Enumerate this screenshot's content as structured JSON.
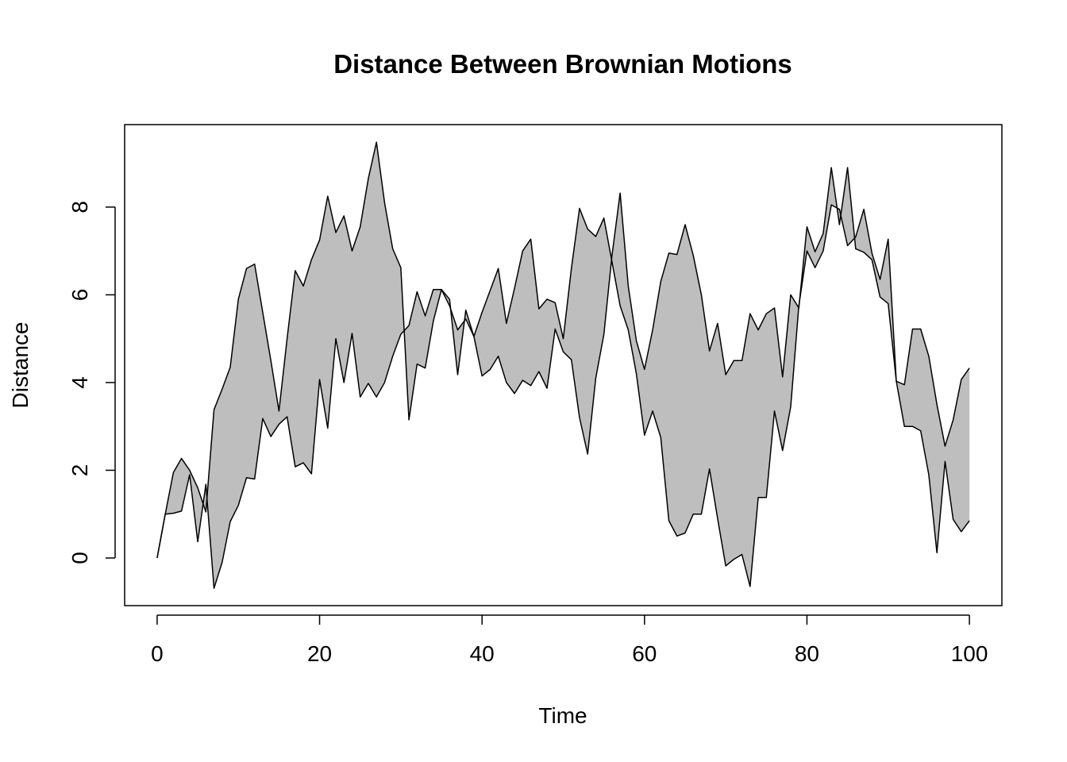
{
  "chart_data": {
    "type": "area_between",
    "title": "Distance Between Brownian Motions",
    "xlabel": "Time",
    "ylabel": "Distance",
    "x": [
      0,
      1,
      2,
      3,
      4,
      5,
      6,
      7,
      8,
      9,
      10,
      11,
      12,
      13,
      14,
      15,
      16,
      17,
      18,
      19,
      20,
      21,
      22,
      23,
      24,
      25,
      26,
      27,
      28,
      29,
      30,
      31,
      32,
      33,
      34,
      35,
      36,
      37,
      38,
      39,
      40,
      41,
      42,
      43,
      44,
      45,
      46,
      47,
      48,
      49,
      50,
      51,
      52,
      53,
      54,
      55,
      56,
      57,
      58,
      59,
      60,
      61,
      62,
      63,
      64,
      65,
      66,
      67,
      68,
      69,
      70,
      71,
      72,
      73,
      74,
      75,
      76,
      77,
      78,
      79,
      80,
      81,
      82,
      83,
      84,
      85,
      86,
      87,
      88,
      89,
      90,
      91,
      92,
      93,
      94,
      95,
      96,
      97,
      98,
      99,
      100
    ],
    "series": [
      {
        "color": "#000000",
        "values": [
          0,
          1.0,
          1.95,
          2.27,
          2.0,
          1.6,
          1.05,
          3.38,
          3.85,
          4.35,
          5.9,
          6.6,
          6.7,
          5.6,
          4.5,
          3.35,
          5.0,
          6.55,
          6.2,
          6.8,
          7.25,
          8.25,
          7.42,
          7.8,
          7.0,
          7.55,
          8.65,
          9.48,
          8.1,
          7.05,
          6.62,
          3.15,
          4.42,
          4.33,
          5.4,
          6.12,
          5.9,
          4.18,
          5.65,
          5.05,
          5.6,
          6.1,
          6.6,
          5.35,
          6.15,
          7.0,
          7.27,
          5.68,
          5.9,
          5.82,
          5.0,
          6.6,
          7.97,
          7.5,
          7.33,
          7.75,
          6.75,
          5.75,
          5.2,
          4.2,
          2.8,
          3.35,
          2.75,
          0.85,
          0.5,
          0.57,
          1.0,
          1.0,
          2.03,
          0.9,
          -0.18,
          -0.03,
          0.08,
          -0.65,
          1.38,
          1.38,
          3.35,
          2.45,
          3.45,
          5.75,
          7.0,
          6.62,
          7.0,
          8.05,
          7.95,
          7.12,
          7.32,
          7.95,
          6.95,
          6.35,
          7.27,
          4.03,
          3.95,
          5.22,
          5.22,
          4.6,
          3.5,
          2.55,
          3.15,
          4.07,
          4.33
        ]
      },
      {
        "color": "#000000",
        "values": [
          0,
          1.0,
          1.02,
          1.07,
          1.9,
          0.37,
          1.68,
          -0.69,
          -0.1,
          0.83,
          1.2,
          1.83,
          1.8,
          3.18,
          2.77,
          3.05,
          3.22,
          2.08,
          2.17,
          1.92,
          4.07,
          2.96,
          5.0,
          4.0,
          5.12,
          3.67,
          3.98,
          3.67,
          4.0,
          4.6,
          5.1,
          5.3,
          6.07,
          5.52,
          6.12,
          6.12,
          5.75,
          5.2,
          5.45,
          5.05,
          4.15,
          4.3,
          4.6,
          4.0,
          3.75,
          4.05,
          3.93,
          4.25,
          3.87,
          5.22,
          4.7,
          4.52,
          3.2,
          2.37,
          4.1,
          5.1,
          6.9,
          8.32,
          6.2,
          4.95,
          4.3,
          5.2,
          6.3,
          6.95,
          6.92,
          7.6,
          6.9,
          6.0,
          4.72,
          5.35,
          4.18,
          4.5,
          4.5,
          5.57,
          5.2,
          5.57,
          5.7,
          4.13,
          6.0,
          5.7,
          7.55,
          6.98,
          7.4,
          8.9,
          7.6,
          8.9,
          7.05,
          6.97,
          6.8,
          5.95,
          5.8,
          4.03,
          3.0,
          3.0,
          2.9,
          1.9,
          0.12,
          2.2,
          0.88,
          0.6,
          0.85
        ]
      }
    ],
    "fill": "#bebebe",
    "xlim": [
      -4,
      104
    ],
    "ylim": [
      -1.086,
      9.88
    ],
    "xticks": [
      0,
      20,
      40,
      60,
      80,
      100
    ],
    "yticks": [
      0,
      2,
      4,
      6,
      8
    ]
  }
}
